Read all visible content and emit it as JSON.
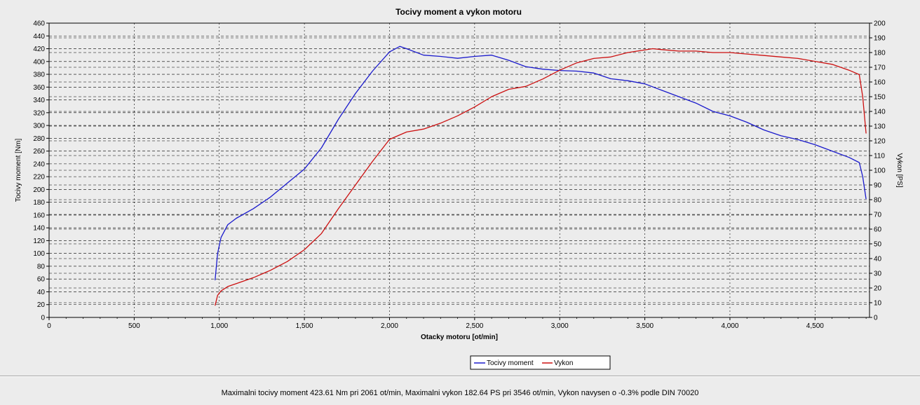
{
  "chart_data": {
    "type": "line",
    "title": "Tocivy moment a vykon motoru",
    "xlabel": "Otacky motoru [ot/min]",
    "ylabel_left": "Tocivy moment [Nm]",
    "ylabel_right": "Vykon [PS]",
    "xlim": [
      0,
      4820
    ],
    "ylim_left": [
      0,
      460
    ],
    "ylim_right": [
      0,
      200
    ],
    "x_ticks": [
      0,
      500,
      1000,
      1500,
      2000,
      2500,
      3000,
      3500,
      4000,
      4500
    ],
    "x_tick_labels": [
      "0",
      "500",
      "1,000",
      "1,500",
      "2,000",
      "2,500",
      "3,000",
      "3,500",
      "4,000",
      "4,500"
    ],
    "y_left_ticks": [
      0,
      20,
      40,
      60,
      80,
      100,
      120,
      140,
      160,
      180,
      200,
      220,
      240,
      260,
      280,
      300,
      320,
      340,
      360,
      380,
      400,
      420,
      440,
      460
    ],
    "y_right_ticks": [
      0,
      10,
      20,
      30,
      40,
      50,
      60,
      70,
      80,
      90,
      100,
      110,
      120,
      130,
      140,
      150,
      160,
      170,
      180,
      190,
      200
    ],
    "grid": true,
    "legend_position": "bottom-center",
    "series": [
      {
        "name": "Tocivy moment",
        "axis": "left",
        "color": "#1a1acc",
        "x": [
          975,
          990,
          1010,
          1050,
          1100,
          1200,
          1300,
          1400,
          1500,
          1600,
          1700,
          1800,
          1900,
          2000,
          2061,
          2100,
          2200,
          2300,
          2400,
          2500,
          2600,
          2700,
          2800,
          2900,
          3000,
          3100,
          3200,
          3300,
          3400,
          3500,
          3600,
          3700,
          3800,
          3900,
          4000,
          4100,
          4200,
          4300,
          4400,
          4500,
          4600,
          4700,
          4760,
          4780,
          4800
        ],
        "y": [
          58,
          100,
          125,
          145,
          155,
          170,
          188,
          210,
          232,
          265,
          310,
          350,
          385,
          415,
          423.61,
          420,
          410,
          408,
          405,
          408,
          410,
          402,
          392,
          388,
          386,
          385,
          382,
          373,
          370,
          365,
          355,
          345,
          335,
          322,
          315,
          305,
          293,
          284,
          278,
          270,
          260,
          250,
          242,
          220,
          185
        ]
      },
      {
        "name": "Vykon",
        "axis": "right",
        "color": "#cc1010",
        "x": [
          975,
          990,
          1010,
          1050,
          1100,
          1200,
          1300,
          1400,
          1500,
          1600,
          1700,
          1800,
          1900,
          2000,
          2100,
          2200,
          2300,
          2400,
          2500,
          2600,
          2700,
          2800,
          2900,
          3000,
          3100,
          3200,
          3300,
          3400,
          3546,
          3600,
          3700,
          3800,
          3900,
          4000,
          4100,
          4200,
          4300,
          4400,
          4500,
          4600,
          4700,
          4760,
          4780,
          4800
        ],
        "y": [
          8,
          15,
          18,
          21,
          23,
          27,
          32,
          38,
          46,
          57,
          74,
          90,
          106,
          121,
          126,
          128,
          132,
          137,
          143,
          150,
          155,
          157,
          162,
          168,
          173,
          176,
          177,
          180,
          182.64,
          182,
          181,
          181,
          180,
          180,
          179,
          178,
          177,
          176,
          174,
          172,
          168,
          165,
          150,
          125
        ]
      }
    ]
  },
  "footer_text": "Maximalni tocivy moment 423.61 Nm pri 2061 ot/min,  Maximalni vykon 182.64 PS pri 3546 ot/min,  Vykon navysen o -0.3% podle DIN 70020"
}
